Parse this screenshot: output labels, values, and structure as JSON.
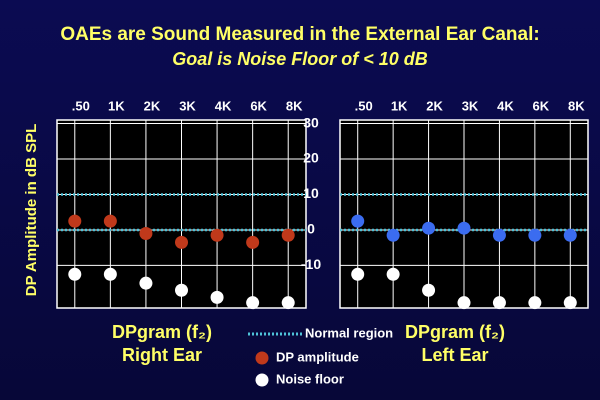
{
  "title": "OAEs are Sound Measured in the External Ear Canal:",
  "subtitle": "Goal is Noise Floor of < 10 dB",
  "y_label": "DP Amplitude  in  dB SPL",
  "chart_data": [
    {
      "type": "scatter",
      "title": "DPgram (f₂)",
      "subtitle": "Right Ear",
      "categories": [
        ".50",
        "1K",
        "2K",
        "3K",
        "4K",
        "6K",
        "8K"
      ],
      "series": [
        {
          "name": "DP amplitude",
          "color": "#c0391b",
          "values": [
            2.5,
            2.5,
            -1,
            -3.5,
            -1.5,
            -3.5,
            -1.5
          ]
        },
        {
          "name": "Noise floor",
          "color": "#ffffff",
          "values": [
            -12.5,
            -12.5,
            -15,
            -17,
            -19,
            -20.5,
            -20.5
          ]
        }
      ],
      "normal_region": {
        "name": "Normal region",
        "color": "#4fc3d9",
        "values": [
          0,
          10
        ]
      },
      "ylim": [
        -22,
        31
      ],
      "yticks": [
        30,
        20,
        10,
        0,
        -10
      ],
      "grid": true
    },
    {
      "type": "scatter",
      "title": "DPgram (f₂)",
      "subtitle": "Left Ear",
      "categories": [
        ".50",
        "1K",
        "2K",
        "3K",
        "4K",
        "6K",
        "8K"
      ],
      "series": [
        {
          "name": "DP amplitude",
          "color": "#3b6cf0",
          "values": [
            2.5,
            -1.5,
            0.5,
            0.5,
            -1.5,
            -1.5,
            -1.5
          ]
        },
        {
          "name": "Noise floor",
          "color": "#ffffff",
          "values": [
            -12.5,
            -12.5,
            -17,
            -20.5,
            -20.5,
            -20.5,
            -20.5
          ]
        }
      ],
      "normal_region": {
        "name": "Normal region",
        "color": "#4fc3d9",
        "values": [
          0,
          10
        ]
      },
      "ylim": [
        -22,
        31
      ],
      "yticks": [
        30,
        20,
        10,
        0,
        -10
      ],
      "grid": true
    }
  ]
}
